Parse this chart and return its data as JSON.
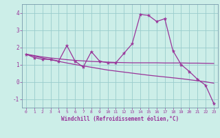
{
  "xlabel": "Windchill (Refroidissement éolien,°C)",
  "background_color": "#cceee8",
  "line_color": "#993399",
  "grid_color": "#99cccc",
  "spine_color": "#7799aa",
  "x_values": [
    0,
    1,
    2,
    3,
    4,
    5,
    6,
    7,
    8,
    9,
    10,
    11,
    12,
    13,
    14,
    15,
    16,
    17,
    18,
    19,
    20,
    21,
    22,
    23
  ],
  "y_main": [
    1.6,
    1.4,
    1.3,
    1.3,
    1.2,
    2.1,
    1.2,
    0.85,
    1.75,
    1.2,
    1.1,
    1.1,
    1.65,
    2.2,
    3.9,
    3.85,
    3.5,
    3.65,
    1.8,
    1.0,
    0.6,
    0.15,
    -0.2,
    -1.25
  ],
  "y_flat": [
    1.6,
    1.52,
    1.44,
    1.38,
    1.33,
    1.28,
    1.24,
    1.21,
    1.18,
    1.16,
    1.14,
    1.12,
    1.11,
    1.1,
    1.1,
    1.1,
    1.1,
    1.09,
    1.09,
    1.09,
    1.08,
    1.08,
    1.07,
    1.06
  ],
  "y_descend": [
    1.6,
    1.48,
    1.38,
    1.28,
    1.18,
    1.09,
    1.0,
    0.92,
    0.84,
    0.76,
    0.68,
    0.62,
    0.56,
    0.5,
    0.44,
    0.38,
    0.33,
    0.28,
    0.23,
    0.18,
    0.12,
    0.06,
    0.0,
    -0.08
  ],
  "ylim": [
    -1.5,
    4.5
  ],
  "xlim": [
    -0.5,
    23.5
  ],
  "yticks": [
    -1,
    0,
    1,
    2,
    3,
    4
  ],
  "xticks": [
    0,
    1,
    2,
    3,
    4,
    5,
    6,
    7,
    8,
    9,
    10,
    11,
    12,
    13,
    14,
    15,
    16,
    17,
    18,
    19,
    20,
    21,
    22,
    23
  ]
}
